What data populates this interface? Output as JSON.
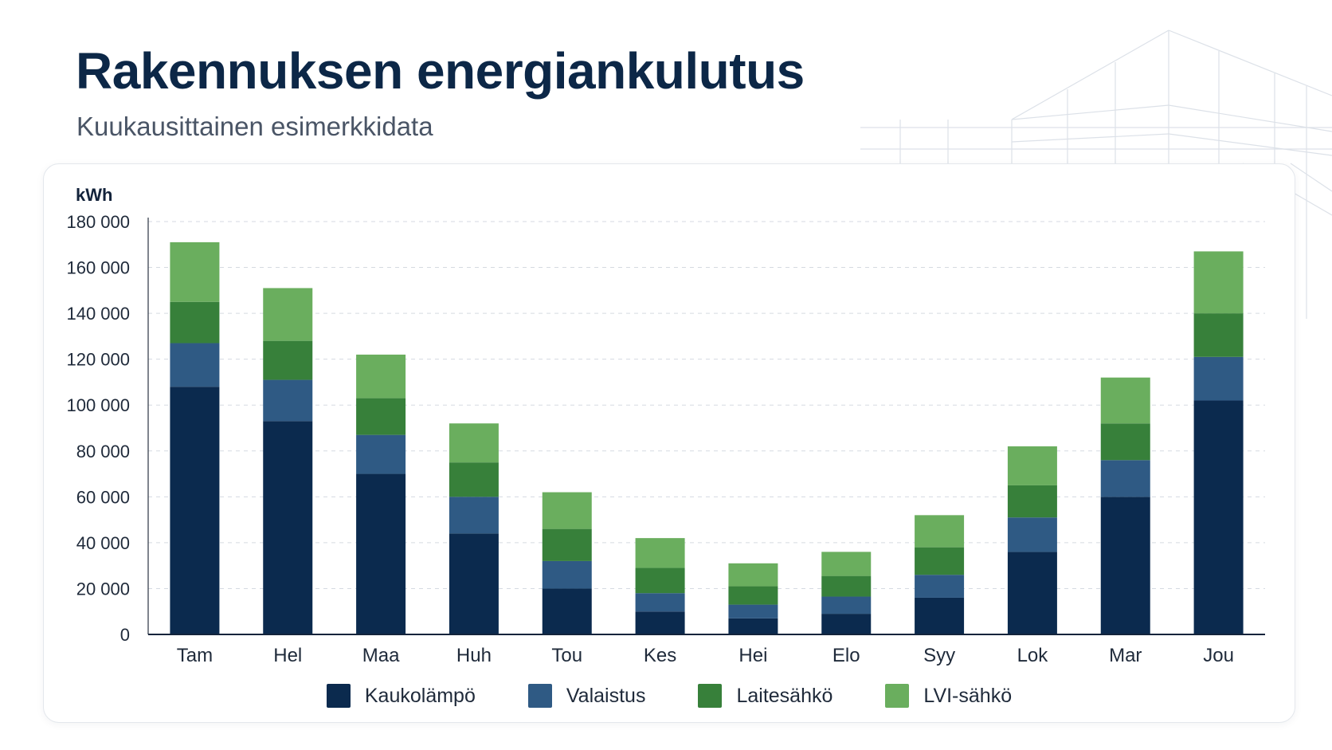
{
  "page": {
    "title": "Rakennuksen energiankulutus",
    "subtitle": "Kuukausittainen esimerkkidata"
  },
  "chart_data": {
    "type": "bar",
    "stacked": true,
    "ylabel": "kWh",
    "ylim": [
      0,
      180000
    ],
    "y_ticks": [
      0,
      20000,
      40000,
      60000,
      80000,
      100000,
      120000,
      140000,
      160000,
      180000
    ],
    "y_tick_labels": [
      "0",
      "20 000",
      "40 000",
      "60 000",
      "80 000",
      "100 000",
      "120 000",
      "140 000",
      "160 000",
      "180 000"
    ],
    "grid": true,
    "legend_position": "bottom",
    "categories": [
      "Tam",
      "Hel",
      "Maa",
      "Huh",
      "Tou",
      "Kes",
      "Hei",
      "Elo",
      "Syy",
      "Lok",
      "Mar",
      "Jou"
    ],
    "series": [
      {
        "name": "Kaukolämpö",
        "color": "#0b2a4e",
        "values": [
          108000,
          93000,
          70000,
          44000,
          20000,
          10000,
          7000,
          9000,
          16000,
          36000,
          60000,
          102000
        ]
      },
      {
        "name": "Valaistus",
        "color": "#2f5a84",
        "values": [
          19000,
          18000,
          17000,
          16000,
          12000,
          8000,
          6000,
          7500,
          10000,
          15000,
          16000,
          19000
        ]
      },
      {
        "name": "Laitesähkö",
        "color": "#37803a",
        "values": [
          18000,
          17000,
          16000,
          15000,
          14000,
          11000,
          8000,
          9000,
          12000,
          14000,
          16000,
          19000
        ]
      },
      {
        "name": "LVI-sähkö",
        "color": "#6aae5e",
        "values": [
          26000,
          23000,
          19000,
          17000,
          16000,
          13000,
          10000,
          10500,
          14000,
          17000,
          20000,
          27000
        ]
      }
    ]
  }
}
